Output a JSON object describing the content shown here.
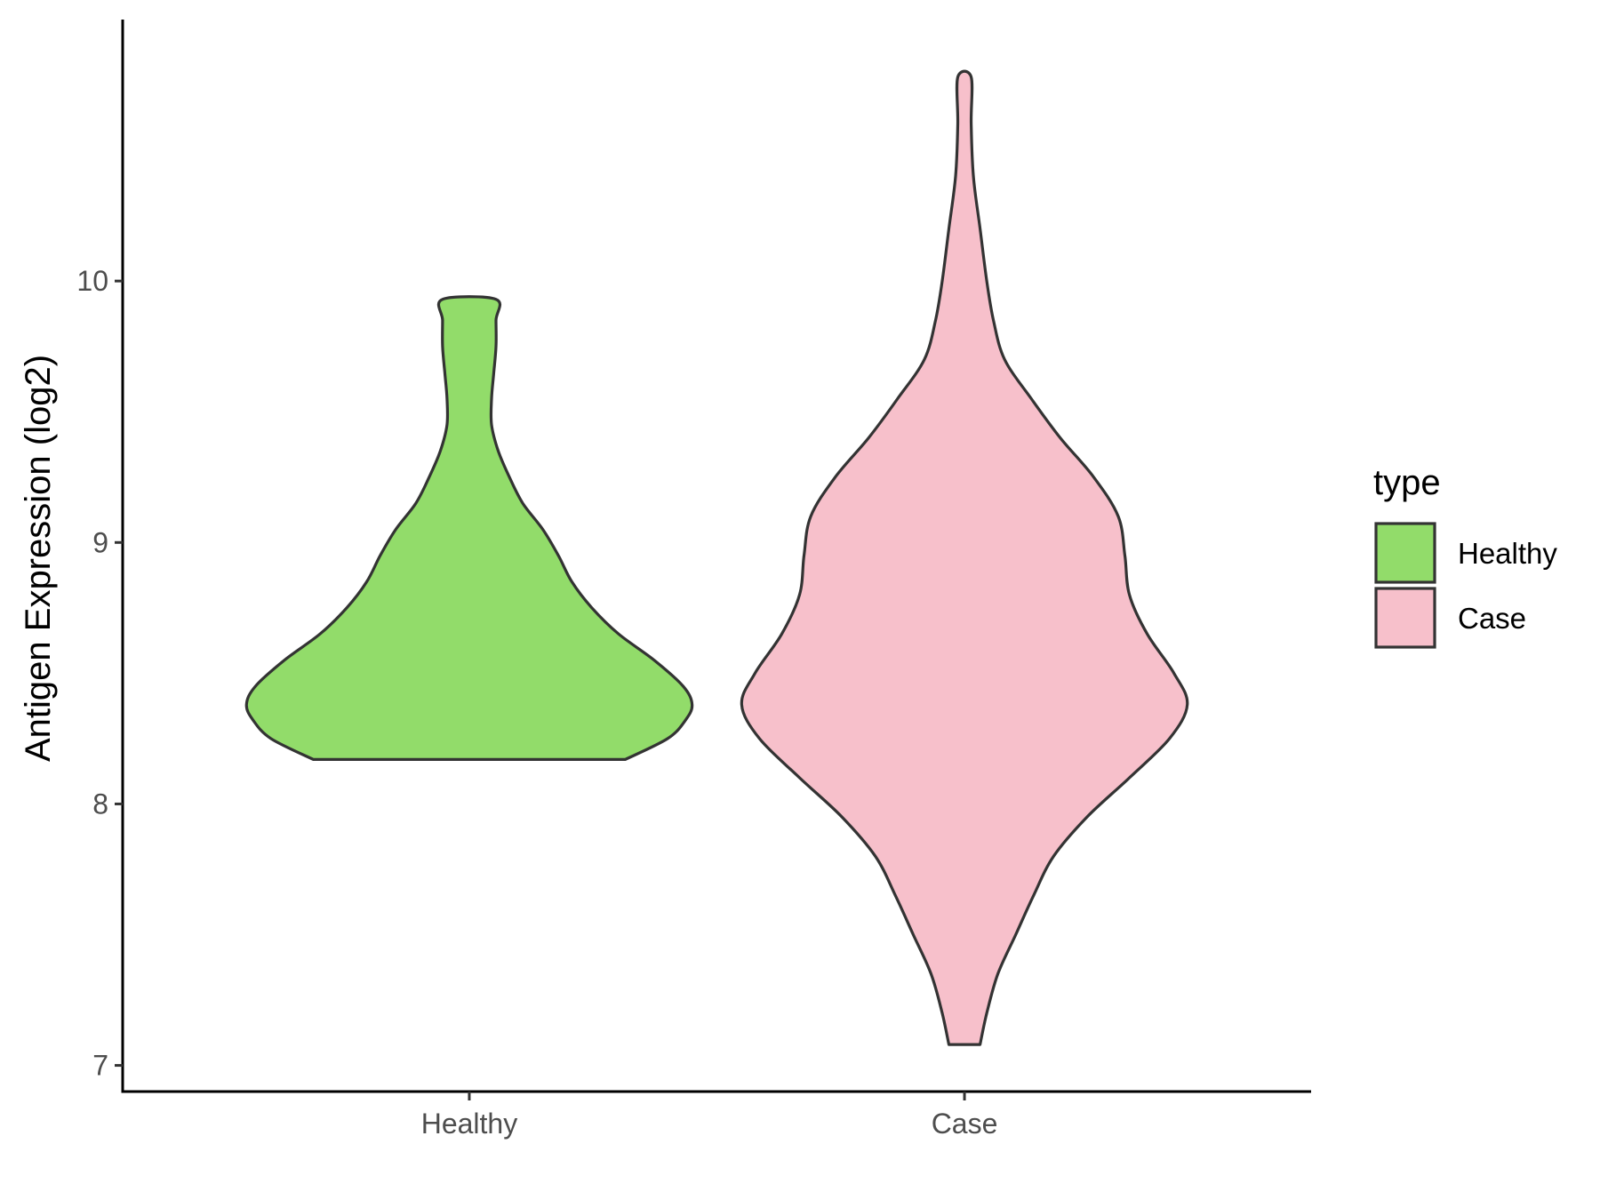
{
  "chart_data": {
    "type": "violin",
    "title": "",
    "xlabel": "",
    "ylabel": "Antigen Expression (log2)",
    "ylim": [
      6.9,
      11.0
    ],
    "yticks": [
      7,
      8,
      9,
      10
    ],
    "categories": [
      "Healthy",
      "Case"
    ],
    "grid": false,
    "legend": {
      "title": "type",
      "position": "right",
      "entries": [
        {
          "label": "Healthy",
          "color": "#92dc6a"
        },
        {
          "label": "Case",
          "color": "#f7c0cb"
        }
      ]
    },
    "series": [
      {
        "name": "Healthy",
        "color": "#92dc6a",
        "min": 8.17,
        "max": 9.93,
        "profile": [
          [
            8.17,
            0.7
          ],
          [
            8.25,
            0.89
          ],
          [
            8.32,
            0.97
          ],
          [
            8.38,
            1.0
          ],
          [
            8.45,
            0.96
          ],
          [
            8.55,
            0.83
          ],
          [
            8.65,
            0.67
          ],
          [
            8.75,
            0.55
          ],
          [
            8.85,
            0.46
          ],
          [
            8.95,
            0.4
          ],
          [
            9.05,
            0.33
          ],
          [
            9.15,
            0.24
          ],
          [
            9.25,
            0.18
          ],
          [
            9.35,
            0.13
          ],
          [
            9.45,
            0.1
          ],
          [
            9.55,
            0.1
          ],
          [
            9.65,
            0.11
          ],
          [
            9.75,
            0.12
          ],
          [
            9.85,
            0.12
          ],
          [
            9.93,
            0.12
          ]
        ]
      },
      {
        "name": "Case",
        "color": "#f7c0cb",
        "min": 7.08,
        "max": 10.78,
        "profile": [
          [
            7.08,
            0.07
          ],
          [
            7.2,
            0.1
          ],
          [
            7.35,
            0.15
          ],
          [
            7.5,
            0.23
          ],
          [
            7.65,
            0.31
          ],
          [
            7.8,
            0.4
          ],
          [
            7.95,
            0.55
          ],
          [
            8.1,
            0.74
          ],
          [
            8.25,
            0.92
          ],
          [
            8.38,
            1.0
          ],
          [
            8.5,
            0.94
          ],
          [
            8.65,
            0.82
          ],
          [
            8.8,
            0.74
          ],
          [
            8.95,
            0.72
          ],
          [
            9.1,
            0.69
          ],
          [
            9.25,
            0.58
          ],
          [
            9.4,
            0.43
          ],
          [
            9.55,
            0.3
          ],
          [
            9.7,
            0.18
          ],
          [
            9.85,
            0.13
          ],
          [
            10.0,
            0.1
          ],
          [
            10.2,
            0.07
          ],
          [
            10.4,
            0.04
          ],
          [
            10.6,
            0.03
          ],
          [
            10.78,
            0.03
          ]
        ]
      }
    ]
  }
}
